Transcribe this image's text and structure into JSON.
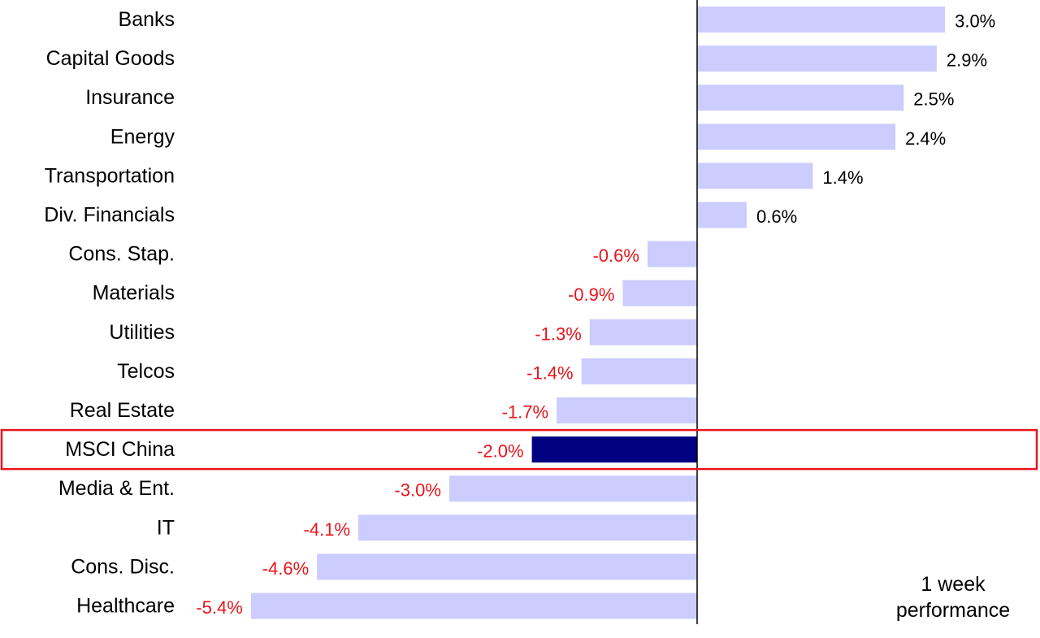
{
  "chart_data": {
    "type": "bar",
    "orientation": "horizontal",
    "categories": [
      "Banks",
      "Capital Goods",
      "Insurance",
      "Energy",
      "Transportation",
      "Div. Financials",
      "Cons. Stap.",
      "Materials",
      "Utilities",
      "Telcos",
      "Real Estate",
      "MSCI China",
      "Media & Ent.",
      "IT",
      "Cons. Disc.",
      "Healthcare"
    ],
    "values": [
      3.0,
      2.9,
      2.5,
      2.4,
      1.4,
      0.6,
      -0.6,
      -0.9,
      -1.3,
      -1.4,
      -1.7,
      -2.0,
      -3.0,
      -4.1,
      -4.6,
      -5.4
    ],
    "value_labels": [
      "3.0%",
      "2.9%",
      "2.5%",
      "2.4%",
      "1.4%",
      "0.6%",
      "-0.6%",
      "-0.9%",
      "-1.3%",
      "-1.4%",
      "-1.7%",
      "-2.0%",
      "-3.0%",
      "-4.1%",
      "-4.6%",
      "-5.4%"
    ],
    "highlight_category": "MSCI China",
    "annotation": [
      "1 week",
      "performance"
    ],
    "xlim": [
      -5.4,
      3.0
    ],
    "grid": false,
    "colors": {
      "bar": "#ccccff",
      "highlight_bar": "#000080",
      "highlight_box": "#e8141c",
      "positive_label": "#000000",
      "negative_label": "#e8141c",
      "axis": "#000000"
    }
  }
}
